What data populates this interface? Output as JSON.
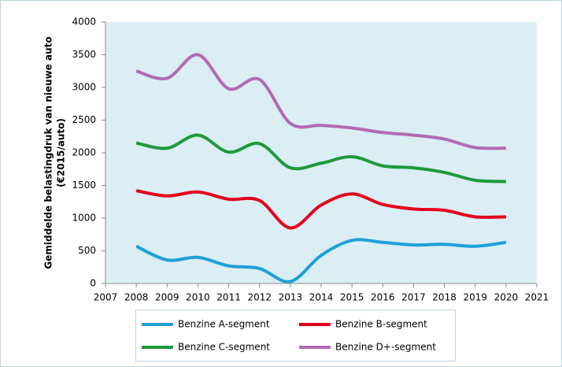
{
  "chart_data": {
    "type": "line",
    "ylabel": [
      "Gemiddelde belastingdruk van nieuwe auto",
      "(€2015/auto)"
    ],
    "x": [
      2008,
      2009,
      2010,
      2011,
      2012,
      2013,
      2014,
      2015,
      2016,
      2017,
      2018,
      2019,
      2020
    ],
    "series": [
      {
        "name": "Benzine A-segment",
        "color": "#1fa0d8",
        "values": [
          570,
          360,
          400,
          270,
          230,
          30,
          430,
          660,
          630,
          590,
          600,
          570,
          630
        ]
      },
      {
        "name": "Benzine B-segment",
        "color": "#e3001b",
        "values": [
          1420,
          1340,
          1400,
          1290,
          1270,
          850,
          1200,
          1370,
          1210,
          1140,
          1120,
          1020,
          1020
        ]
      },
      {
        "name": "Benzine C-segment",
        "color": "#1e9a3b",
        "values": [
          2150,
          2070,
          2270,
          2010,
          2140,
          1770,
          1840,
          1940,
          1800,
          1770,
          1700,
          1580,
          1560
        ]
      },
      {
        "name": "Benzine D+-segment",
        "color": "#b36bb5",
        "values": [
          3250,
          3140,
          3500,
          2980,
          3120,
          2450,
          2420,
          2380,
          2310,
          2270,
          2210,
          2080,
          2070
        ]
      }
    ],
    "xlim": [
      2007,
      2021
    ],
    "xticks": [
      2007,
      2008,
      2009,
      2010,
      2011,
      2012,
      2013,
      2014,
      2015,
      2016,
      2017,
      2018,
      2019,
      2020,
      2021
    ],
    "ylim": [
      0,
      4000
    ],
    "yticks": [
      0,
      500,
      1000,
      1500,
      2000,
      2500,
      3000,
      3500,
      4000
    ],
    "grid": false,
    "legend": "bottom"
  }
}
